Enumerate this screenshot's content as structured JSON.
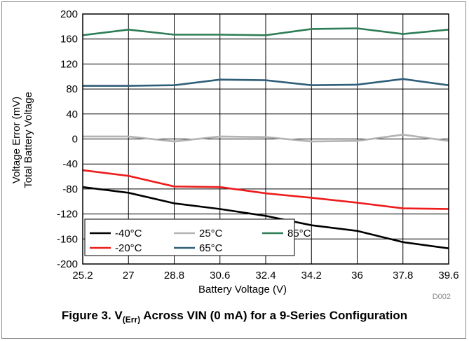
{
  "caption": {
    "prefix": "Figure 3. V",
    "subscript": "(Err)",
    "suffix": " Across VIN (0 mA) for a 9-Series Configuration"
  },
  "code_id": "D002",
  "colors": {
    "-40°C": "#000000",
    "-20°C": "#ee1c1c",
    "25°C": "#b3b3b3",
    "65°C": "#2f5f78",
    "85°C": "#2e7d57"
  },
  "chart_data": {
    "type": "line",
    "xlabel": "Battery Voltage (V)",
    "ylabel": [
      "Voltage Error (mV)",
      "Total Battery Voltage"
    ],
    "x": [
      25.2,
      27,
      28.8,
      30.6,
      32.4,
      34.2,
      36,
      37.8,
      39.6
    ],
    "x_ticks": [
      "25.2",
      "27",
      "28.8",
      "30.6",
      "32.4",
      "34.2",
      "36",
      "37.8",
      "39.6"
    ],
    "xlim": [
      25.2,
      39.6
    ],
    "ylim": [
      -200,
      200
    ],
    "y_ticks": [
      "200",
      "160",
      "120",
      "80",
      "40",
      "0",
      "-40",
      "-80",
      "-120",
      "-160",
      "-200"
    ],
    "grid": true,
    "legend_position": "bottom-left",
    "series": [
      {
        "name": "-40°C",
        "values": [
          -77,
          -86,
          -103,
          -112,
          -123,
          -138,
          -147,
          -165,
          -175
        ]
      },
      {
        "name": "-20°C",
        "values": [
          -50,
          -59,
          -76,
          -77,
          -87,
          -94,
          -102,
          -111,
          -112
        ]
      },
      {
        "name": "25°C",
        "values": [
          4,
          4,
          -4,
          4,
          3,
          -4,
          -3,
          7,
          -3
        ]
      },
      {
        "name": "65°C",
        "values": [
          85,
          85,
          86,
          95,
          94,
          86,
          87,
          96,
          86
        ]
      },
      {
        "name": "85°C",
        "values": [
          166,
          175,
          167,
          167,
          166,
          176,
          177,
          168,
          175
        ]
      }
    ]
  }
}
